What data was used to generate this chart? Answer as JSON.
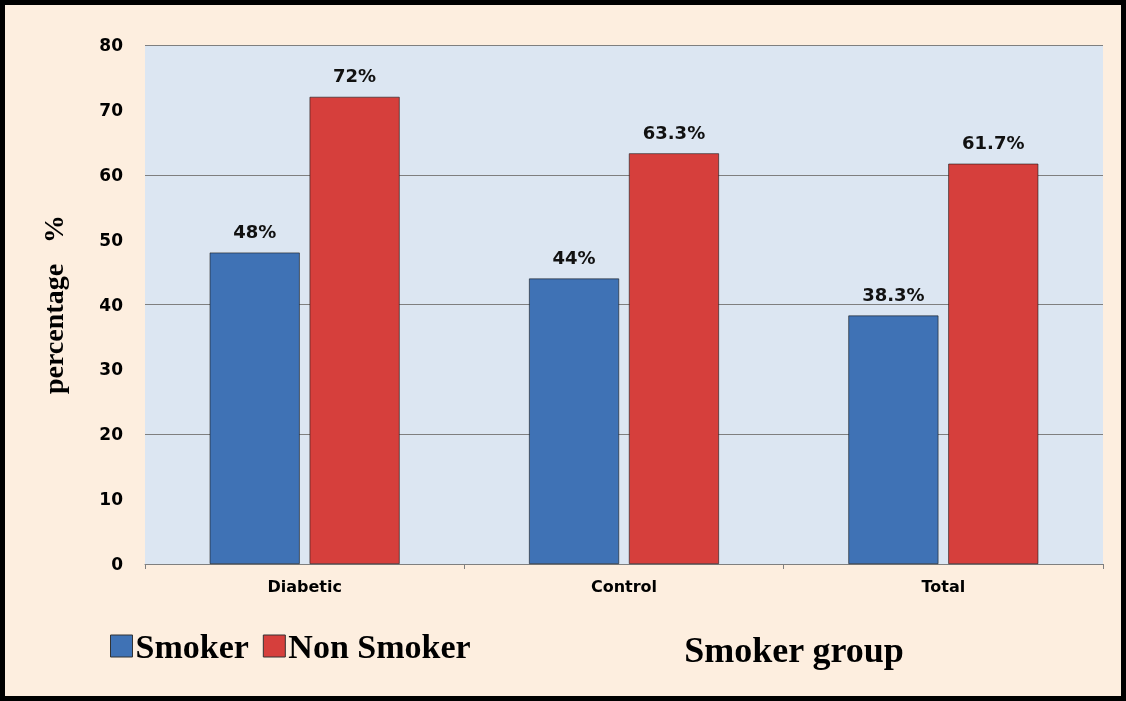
{
  "chart_data": {
    "type": "bar",
    "xlabel": "Smoker group",
    "ylabel": "percentage   %",
    "categories": [
      "Diabetic",
      "Control",
      "Total"
    ],
    "series": [
      {
        "name": "Smoker",
        "color": "#3f72b5",
        "values": [
          48,
          44,
          38.3
        ],
        "value_labels": [
          "48%",
          "44%",
          "38.3%"
        ]
      },
      {
        "name": "Non Smoker",
        "color": "#d63f3c",
        "values": [
          72,
          63.3,
          61.7
        ],
        "value_labels": [
          "72%",
          "63.3%",
          "61.7%"
        ]
      }
    ],
    "ylim": [
      0,
      80
    ],
    "yticks": [
      0,
      10,
      20,
      30,
      40,
      50,
      60,
      70,
      80
    ],
    "grid": "y",
    "legend": "bottom left"
  }
}
